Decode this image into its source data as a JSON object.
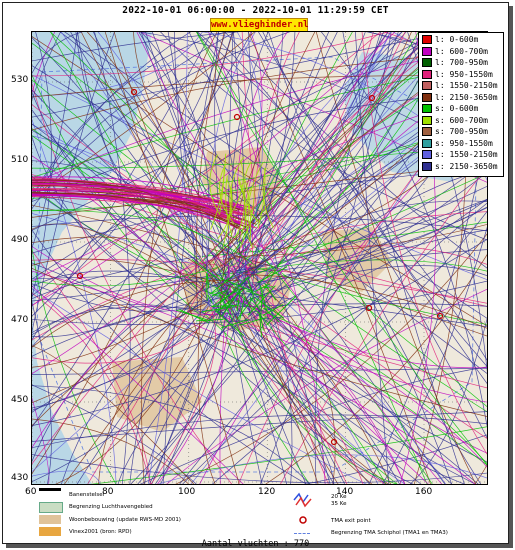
{
  "header": {
    "title": "2022-10-01 06:00:00 - 2022-10-01 11:29:59 CET",
    "brand": "www.vlieghinder.nl"
  },
  "axes": {
    "y_ticks": [
      "530",
      "510",
      "490",
      "470",
      "450",
      "430"
    ],
    "x_ticks": [
      "60",
      "80",
      "100",
      "120",
      "140",
      "160"
    ]
  },
  "legend": {
    "items": [
      {
        "label": "l: 0-600m",
        "color": "#e00000"
      },
      {
        "label": "l: 600-700m",
        "color": "#c000c0"
      },
      {
        "label": "l: 700-950m",
        "color": "#006000"
      },
      {
        "label": "l: 950-1550m",
        "color": "#e0207a"
      },
      {
        "label": "l: 1550-2150m",
        "color": "#c06060"
      },
      {
        "label": "l: 2150-3650m",
        "color": "#803010"
      },
      {
        "label": "s: 0-600m",
        "color": "#00c000"
      },
      {
        "label": "s: 600-700m",
        "color": "#a0e000"
      },
      {
        "label": "s: 700-950m",
        "color": "#a06040"
      },
      {
        "label": "s: 950-1550m",
        "color": "#30a0a0"
      },
      {
        "label": "s: 1550-2150m",
        "color": "#6060e0"
      },
      {
        "label": "s: 2150-3650m",
        "color": "#303090"
      }
    ]
  },
  "bottom_legend": {
    "items": [
      {
        "label": "Banenstelsel"
      },
      {
        "label": "Begrenzing Luchthavengebied"
      },
      {
        "label": "Woonbebouwing (update RWS-MD 2001)"
      },
      {
        "label": "Vinex2001 (bron: RPD)"
      },
      {
        "label": "20 Ke"
      },
      {
        "label": "35 Ke"
      },
      {
        "label": "TMA exit point"
      },
      {
        "label": "Begrenzing TMA Schiphol  (TMA1 en TMA3)"
      }
    ]
  },
  "footer": {
    "count_label": "Aantal vluchten : 770"
  },
  "colors": {
    "water": "#b9d7e6",
    "land": "#efe9dc",
    "builtup": "#e0c39a",
    "airport": "#c9ddc3"
  }
}
